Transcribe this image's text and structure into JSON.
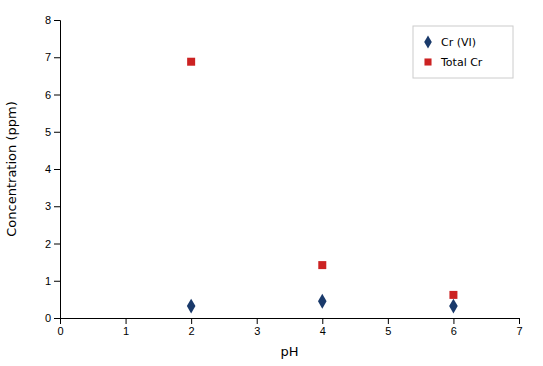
{
  "chart_data": {
    "type": "scatter",
    "xlabel": "pH",
    "ylabel": "Concentration (ppm)",
    "series": [
      {
        "name": "Cr (VI)",
        "color": "#1a3a6b",
        "marker": "diamond",
        "x": [
          2,
          4,
          6
        ],
        "values": [
          0.32,
          0.45,
          0.32
        ]
      },
      {
        "name": "Total Cr",
        "color": "#cc2222",
        "marker": "square",
        "x": [
          2,
          4,
          6
        ],
        "values": [
          6.88,
          1.42,
          0.62
        ]
      }
    ],
    "xlim": [
      0,
      7
    ],
    "ylim": [
      0,
      8
    ],
    "xticks": [
      0,
      1,
      2,
      3,
      4,
      5,
      6,
      7
    ],
    "yticks": [
      0,
      1,
      2,
      3,
      4,
      5,
      6,
      7,
      8
    ],
    "grid": false,
    "legend": "upper right"
  }
}
